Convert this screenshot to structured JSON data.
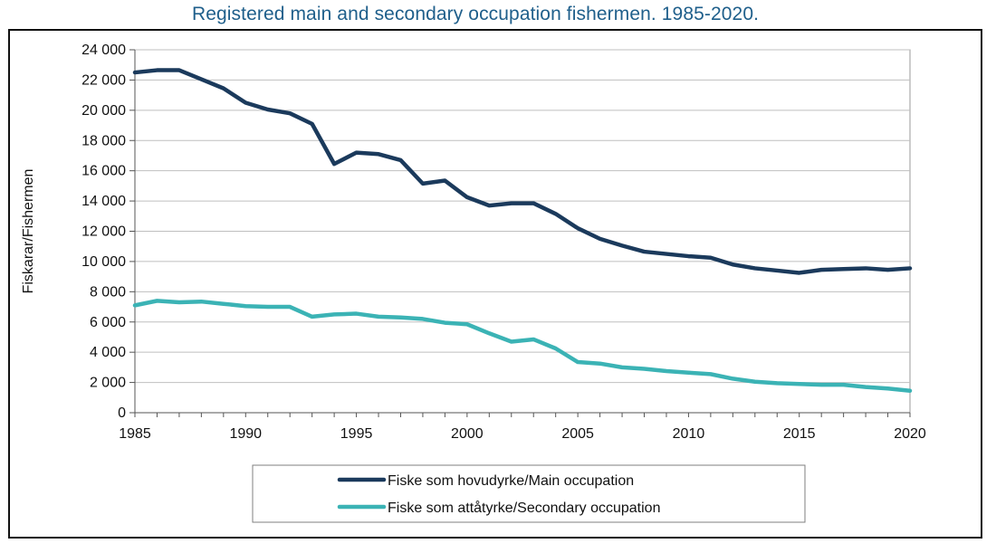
{
  "title": "Registered main and secondary occupation fishermen. 1985-2020.",
  "colors": {
    "main": "#1b3a5c",
    "secondary": "#3bb3b5",
    "title": "#1f5f8b",
    "grid": "#bfbfbf"
  },
  "chart_data": {
    "type": "line",
    "title": "Registered main and secondary occupation fishermen. 1985-2020.",
    "xlabel": "",
    "ylabel": "Fiskarar/Fishermen",
    "xlim": [
      1985,
      2020
    ],
    "ylim": [
      0,
      24000
    ],
    "grid": true,
    "legend_position": "bottom",
    "x_ticks": [
      1985,
      1990,
      1995,
      2000,
      2005,
      2010,
      2015,
      2020
    ],
    "x_tick_labels": [
      "1985",
      "1990",
      "1995",
      "2000",
      "2005",
      "2010",
      "2015",
      "2020"
    ],
    "y_ticks": [
      0,
      2000,
      4000,
      6000,
      8000,
      10000,
      12000,
      14000,
      16000,
      18000,
      20000,
      22000,
      24000
    ],
    "y_tick_labels": [
      "0",
      "2 000",
      "4 000",
      "6 000",
      "8 000",
      "10 000",
      "12 000",
      "14 000",
      "16 000",
      "18 000",
      "20 000",
      "22 000",
      "24 000"
    ],
    "x": [
      1985,
      1986,
      1987,
      1988,
      1989,
      1990,
      1991,
      1992,
      1993,
      1994,
      1995,
      1996,
      1997,
      1998,
      1999,
      2000,
      2001,
      2002,
      2003,
      2004,
      2005,
      2006,
      2007,
      2008,
      2009,
      2010,
      2011,
      2012,
      2013,
      2014,
      2015,
      2016,
      2017,
      2018,
      2019,
      2020
    ],
    "series": [
      {
        "name": "Fiske som hovudyrke/Main occupation",
        "color": "#1b3a5c",
        "values": [
          22500,
          22650,
          22650,
          22050,
          21450,
          20500,
          20050,
          19800,
          19100,
          16450,
          17200,
          17100,
          16700,
          15150,
          15350,
          14250,
          13700,
          13850,
          13850,
          13150,
          12200,
          11500,
          11050,
          10650,
          10500,
          10350,
          10250,
          9800,
          9550,
          9400,
          9250,
          9450,
          9500,
          9550,
          9450,
          9550
        ]
      },
      {
        "name": "Fiske som attåtyrke/Secondary occupation",
        "color": "#3bb3b5",
        "values": [
          7100,
          7400,
          7300,
          7350,
          7200,
          7050,
          7000,
          7000,
          6350,
          6500,
          6550,
          6350,
          6300,
          6200,
          5950,
          5850,
          5250,
          4700,
          4850,
          4250,
          3350,
          3250,
          3000,
          2900,
          2750,
          2650,
          2550,
          2250,
          2050,
          1950,
          1900,
          1850,
          1850,
          1700,
          1600,
          1450
        ]
      }
    ]
  }
}
